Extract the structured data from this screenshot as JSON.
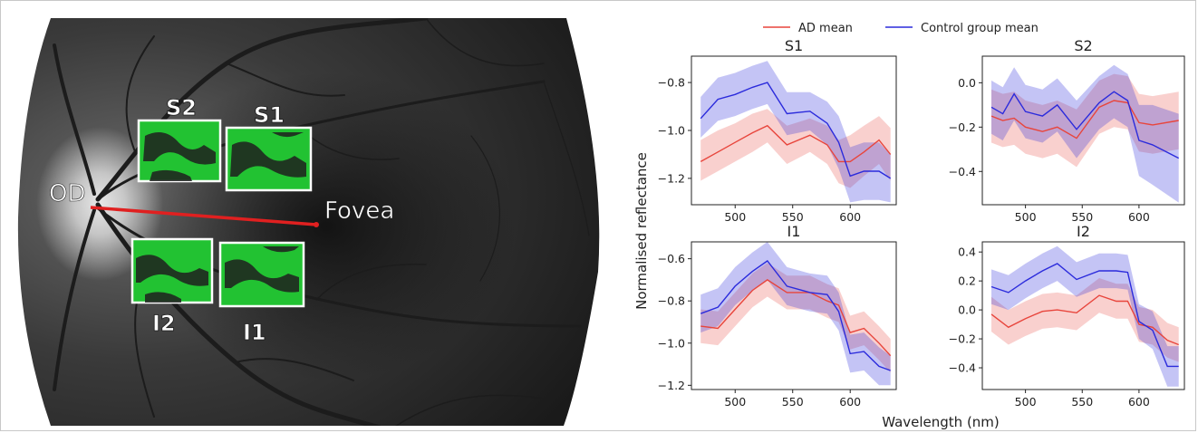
{
  "figure": {
    "fundus": {
      "labels": {
        "od": "OD",
        "fovea": "Fovea",
        "s1": "S1",
        "s2": "S2",
        "i1": "I1",
        "i2": "I2"
      },
      "colors": {
        "region_fill": "#22c232",
        "region_border": "#ffffff",
        "axis_line": "#e02020"
      }
    },
    "legend": {
      "placement": "top-center",
      "items": [
        {
          "label": "AD mean",
          "color": "#e8453c"
        },
        {
          "label": "Control group mean",
          "color": "#2b2bdc"
        }
      ]
    },
    "shared_axes": {
      "ylabel": "Normalised reflectance",
      "xlabel": "Wavelength (nm)"
    }
  },
  "chart_data": [
    {
      "type": "line",
      "title": "S1",
      "x": [
        470,
        485,
        500,
        515,
        528,
        545,
        565,
        580,
        590,
        600,
        612,
        625,
        635
      ],
      "xlim": [
        462,
        640
      ],
      "xticks": [
        500,
        550,
        600
      ],
      "ylim": [
        -1.31,
        -0.69
      ],
      "yticks": [
        -0.8,
        -1.0,
        -1.2
      ],
      "ytick_labels": [
        "−0.8",
        "−1.0",
        "−1.2"
      ],
      "series": [
        {
          "name": "AD mean",
          "color": "#e8453c",
          "values": [
            -1.13,
            -1.09,
            -1.05,
            -1.01,
            -0.98,
            -1.06,
            -1.02,
            -1.06,
            -1.13,
            -1.13,
            -1.09,
            -1.04,
            -1.1
          ],
          "lower": [
            -1.21,
            -1.17,
            -1.13,
            -1.09,
            -1.05,
            -1.14,
            -1.09,
            -1.14,
            -1.22,
            -1.24,
            -1.19,
            -1.14,
            -1.21
          ],
          "upper": [
            -1.04,
            -1.0,
            -0.97,
            -0.93,
            -0.91,
            -0.98,
            -0.95,
            -0.98,
            -1.04,
            -1.02,
            -0.98,
            -0.94,
            -0.99
          ]
        },
        {
          "name": "Control group mean",
          "color": "#2b2bdc",
          "values": [
            -0.95,
            -0.87,
            -0.85,
            -0.82,
            -0.8,
            -0.93,
            -0.92,
            -0.97,
            -1.05,
            -1.19,
            -1.17,
            -1.17,
            -1.2
          ],
          "lower": [
            -1.03,
            -0.96,
            -0.94,
            -0.91,
            -0.89,
            -1.02,
            -1.0,
            -1.06,
            -1.16,
            -1.3,
            -1.29,
            -1.29,
            -1.3
          ],
          "upper": [
            -0.86,
            -0.78,
            -0.76,
            -0.73,
            -0.71,
            -0.84,
            -0.84,
            -0.88,
            -0.94,
            -1.07,
            -1.05,
            -1.05,
            -1.1
          ]
        }
      ]
    },
    {
      "type": "line",
      "title": "S2",
      "x": [
        470,
        480,
        490,
        500,
        515,
        528,
        545,
        565,
        578,
        590,
        600,
        612,
        635
      ],
      "xlim": [
        462,
        640
      ],
      "xticks": [
        500,
        550,
        600
      ],
      "ylim": [
        -0.55,
        0.12
      ],
      "yticks": [
        0.0,
        -0.2,
        -0.4
      ],
      "ytick_labels": [
        "0.0",
        "−0.2",
        "−0.4"
      ],
      "series": [
        {
          "name": "AD mean",
          "color": "#e8453c",
          "values": [
            -0.15,
            -0.17,
            -0.16,
            -0.2,
            -0.22,
            -0.2,
            -0.25,
            -0.11,
            -0.08,
            -0.09,
            -0.18,
            -0.19,
            -0.17
          ],
          "lower": [
            -0.27,
            -0.29,
            -0.28,
            -0.32,
            -0.34,
            -0.32,
            -0.38,
            -0.23,
            -0.2,
            -0.21,
            -0.31,
            -0.32,
            -0.3
          ],
          "upper": [
            -0.03,
            -0.05,
            -0.04,
            -0.08,
            -0.1,
            -0.08,
            -0.12,
            0.01,
            0.04,
            0.03,
            -0.05,
            -0.06,
            -0.04
          ]
        },
        {
          "name": "Control group mean",
          "color": "#2b2bdc",
          "values": [
            -0.11,
            -0.14,
            -0.05,
            -0.13,
            -0.15,
            -0.1,
            -0.21,
            -0.09,
            -0.04,
            -0.08,
            -0.26,
            -0.28,
            -0.34
          ],
          "lower": [
            -0.23,
            -0.26,
            -0.17,
            -0.25,
            -0.27,
            -0.22,
            -0.34,
            -0.21,
            -0.16,
            -0.2,
            -0.42,
            -0.46,
            -0.54
          ],
          "upper": [
            0.01,
            -0.02,
            0.07,
            -0.01,
            -0.03,
            0.02,
            -0.08,
            0.03,
            0.08,
            0.04,
            -0.1,
            -0.1,
            -0.14
          ]
        }
      ]
    },
    {
      "type": "line",
      "title": "I1",
      "x": [
        470,
        485,
        500,
        515,
        528,
        545,
        565,
        580,
        590,
        600,
        612,
        625,
        635
      ],
      "xlim": [
        462,
        640
      ],
      "xticks": [
        500,
        550,
        600
      ],
      "ylim": [
        -1.22,
        -0.52
      ],
      "yticks": [
        -0.6,
        -0.8,
        -1.0,
        -1.2
      ],
      "ytick_labels": [
        "−0.6",
        "−0.8",
        "−1.0",
        "−1.2"
      ],
      "series": [
        {
          "name": "AD mean",
          "color": "#e8453c",
          "values": [
            -0.92,
            -0.93,
            -0.84,
            -0.75,
            -0.7,
            -0.76,
            -0.76,
            -0.8,
            -0.82,
            -0.95,
            -0.93,
            -1.0,
            -1.06
          ],
          "lower": [
            -1.0,
            -1.01,
            -0.92,
            -0.83,
            -0.78,
            -0.84,
            -0.84,
            -0.88,
            -0.9,
            -1.03,
            -1.01,
            -1.08,
            -1.14
          ],
          "upper": [
            -0.84,
            -0.85,
            -0.76,
            -0.67,
            -0.62,
            -0.68,
            -0.68,
            -0.72,
            -0.74,
            -0.87,
            -0.85,
            -0.92,
            -0.98
          ]
        },
        {
          "name": "Control group mean",
          "color": "#2b2bdc",
          "values": [
            -0.86,
            -0.83,
            -0.73,
            -0.66,
            -0.61,
            -0.73,
            -0.76,
            -0.77,
            -0.85,
            -1.05,
            -1.04,
            -1.11,
            -1.13
          ],
          "lower": [
            -0.95,
            -0.92,
            -0.82,
            -0.75,
            -0.7,
            -0.82,
            -0.85,
            -0.86,
            -0.94,
            -1.14,
            -1.13,
            -1.2,
            -1.2
          ],
          "upper": [
            -0.77,
            -0.74,
            -0.64,
            -0.57,
            -0.52,
            -0.64,
            -0.67,
            -0.68,
            -0.76,
            -0.96,
            -0.95,
            -1.02,
            -1.06
          ]
        }
      ]
    },
    {
      "type": "line",
      "title": "I2",
      "x": [
        470,
        485,
        500,
        515,
        528,
        545,
        565,
        580,
        590,
        600,
        612,
        625,
        635
      ],
      "xlim": [
        462,
        640
      ],
      "xticks": [
        500,
        550,
        600
      ],
      "ylim": [
        -0.55,
        0.47
      ],
      "yticks": [
        0.4,
        0.2,
        0.0,
        -0.2,
        -0.4
      ],
      "ytick_labels": [
        "0.4",
        "0.2",
        "0.0",
        "−0.2",
        "−0.4"
      ],
      "series": [
        {
          "name": "AD mean",
          "color": "#e8453c",
          "values": [
            -0.03,
            -0.12,
            -0.06,
            -0.01,
            0.0,
            -0.02,
            0.1,
            0.06,
            0.06,
            -0.1,
            -0.12,
            -0.21,
            -0.24
          ],
          "lower": [
            -0.15,
            -0.24,
            -0.18,
            -0.13,
            -0.12,
            -0.14,
            -0.02,
            -0.06,
            -0.06,
            -0.22,
            -0.24,
            -0.33,
            -0.36
          ],
          "upper": [
            0.09,
            0.0,
            0.06,
            0.11,
            0.12,
            0.1,
            0.22,
            0.18,
            0.18,
            0.02,
            0.0,
            -0.09,
            -0.12
          ]
        },
        {
          "name": "Control group mean",
          "color": "#2b2bdc",
          "values": [
            0.16,
            0.12,
            0.2,
            0.27,
            0.32,
            0.21,
            0.27,
            0.27,
            0.26,
            -0.08,
            -0.14,
            -0.39,
            -0.39
          ],
          "lower": [
            0.04,
            0.0,
            0.08,
            0.15,
            0.2,
            0.09,
            0.15,
            0.15,
            0.14,
            -0.2,
            -0.27,
            -0.53,
            -0.53
          ],
          "upper": [
            0.28,
            0.24,
            0.32,
            0.39,
            0.44,
            0.33,
            0.39,
            0.39,
            0.38,
            0.04,
            -0.01,
            -0.25,
            -0.25
          ]
        }
      ]
    }
  ]
}
